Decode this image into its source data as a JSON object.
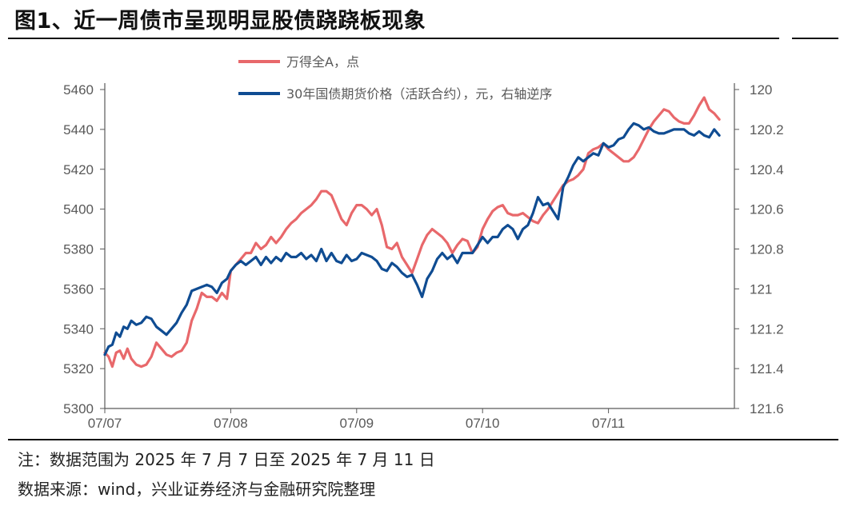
{
  "figure": {
    "title": "图1、近一周债市呈现明显股债跷跷板现象",
    "note": "注：数据范围为 2025 年 7 月 7 日至 2025 年 7 月 11 日",
    "source": "数据来源：wind，兴业证券经济与金融研究院整理"
  },
  "chart_data": {
    "type": "line",
    "title": "",
    "x_tick_labels": [
      "07/07",
      "07/08",
      "07/09",
      "07/10",
      "07/11"
    ],
    "x_unit": "trading day (fractional position within day)",
    "ylim_left": [
      5300,
      5460
    ],
    "yticks_left": [
      5300,
      5320,
      5340,
      5360,
      5380,
      5400,
      5420,
      5440,
      5460
    ],
    "ylim_right": [
      121.6,
      120.0
    ],
    "yticks_right": [
      "121.6",
      "121.4",
      "121.2",
      "121",
      "120.8",
      "120.6",
      "120.4",
      "120.2",
      "120"
    ],
    "right_axis_inverted": true,
    "legend_position": "top-center",
    "colors": {
      "wind_a": "#e8686b",
      "bond_futures": "#0f4c92",
      "axis": "#595959"
    },
    "series": [
      {
        "name": "万得全A，点",
        "axis": "left",
        "x": [
          0,
          0.03,
          0.06,
          0.09,
          0.12,
          0.15,
          0.18,
          0.21,
          0.25,
          0.29,
          0.33,
          0.37,
          0.41,
          0.45,
          0.49,
          0.53,
          0.57,
          0.61,
          0.65,
          0.69,
          0.73,
          0.77,
          0.81,
          0.85,
          0.89,
          0.93,
          0.97,
          1.0,
          1.04,
          1.08,
          1.12,
          1.16,
          1.2,
          1.24,
          1.28,
          1.32,
          1.36,
          1.4,
          1.44,
          1.48,
          1.52,
          1.56,
          1.6,
          1.64,
          1.68,
          1.72,
          1.76,
          1.8,
          1.84,
          1.88,
          1.92,
          1.96,
          2.0,
          2.04,
          2.08,
          2.12,
          2.16,
          2.2,
          2.24,
          2.28,
          2.32,
          2.36,
          2.4,
          2.44,
          2.48,
          2.52,
          2.56,
          2.6,
          2.64,
          2.68,
          2.72,
          2.76,
          2.8,
          2.84,
          2.88,
          2.92,
          2.96,
          3.0,
          3.04,
          3.08,
          3.12,
          3.16,
          3.2,
          3.24,
          3.28,
          3.32,
          3.36,
          3.4,
          3.44,
          3.48,
          3.52,
          3.56,
          3.6,
          3.64,
          3.68,
          3.72,
          3.76,
          3.8,
          3.84,
          3.88,
          3.92,
          3.96,
          4.0,
          4.04,
          4.08,
          4.12,
          4.16,
          4.2,
          4.24,
          4.28,
          4.32,
          4.36,
          4.4,
          4.44,
          4.48,
          4.52,
          4.56,
          4.6,
          4.64,
          4.68,
          4.72,
          4.76,
          4.8,
          4.84,
          4.88
        ],
        "values": [
          5328,
          5326,
          5321,
          5328,
          5329,
          5325,
          5330,
          5325,
          5322,
          5321,
          5322,
          5326,
          5333,
          5330,
          5327,
          5326,
          5328,
          5329,
          5333,
          5344,
          5350,
          5358,
          5356,
          5356,
          5354,
          5358,
          5355,
          5369,
          5372,
          5375,
          5378,
          5378,
          5383,
          5380,
          5382,
          5386,
          5383,
          5386,
          5390,
          5393,
          5395,
          5398,
          5400,
          5402,
          5405,
          5409,
          5409,
          5407,
          5401,
          5395,
          5392,
          5398,
          5402,
          5402,
          5400,
          5397,
          5400,
          5392,
          5381,
          5380,
          5383,
          5376,
          5372,
          5368,
          5375,
          5382,
          5387,
          5390,
          5388,
          5386,
          5383,
          5378,
          5382,
          5385,
          5384,
          5378,
          5381,
          5390,
          5395,
          5399,
          5401,
          5402,
          5398,
          5397,
          5397,
          5398,
          5396,
          5394,
          5393,
          5397,
          5400,
          5404,
          5408,
          5412,
          5414,
          5415,
          5417,
          5420,
          5428,
          5430,
          5431,
          5433,
          5430,
          5428,
          5426,
          5424,
          5424,
          5426,
          5430,
          5435,
          5440,
          5444,
          5447,
          5450,
          5449,
          5446,
          5444,
          5443,
          5443,
          5447,
          5452,
          5456,
          5450,
          5448,
          5445
        ],
        "description_note": ""
      },
      {
        "name": "30年国债期货价格（活跃合约），元，右轴逆序",
        "axis": "right",
        "x": [
          0,
          0.03,
          0.06,
          0.09,
          0.12,
          0.15,
          0.18,
          0.21,
          0.25,
          0.29,
          0.33,
          0.37,
          0.41,
          0.45,
          0.49,
          0.53,
          0.57,
          0.61,
          0.65,
          0.69,
          0.73,
          0.77,
          0.81,
          0.85,
          0.89,
          0.93,
          0.97,
          1.0,
          1.04,
          1.08,
          1.12,
          1.16,
          1.2,
          1.24,
          1.28,
          1.32,
          1.36,
          1.4,
          1.44,
          1.48,
          1.52,
          1.56,
          1.6,
          1.64,
          1.68,
          1.72,
          1.76,
          1.8,
          1.84,
          1.88,
          1.92,
          1.96,
          2.0,
          2.04,
          2.08,
          2.12,
          2.16,
          2.2,
          2.24,
          2.28,
          2.32,
          2.36,
          2.4,
          2.44,
          2.48,
          2.52,
          2.56,
          2.6,
          2.64,
          2.68,
          2.72,
          2.76,
          2.8,
          2.84,
          2.88,
          2.92,
          2.96,
          3.0,
          3.04,
          3.08,
          3.12,
          3.16,
          3.2,
          3.24,
          3.28,
          3.32,
          3.36,
          3.4,
          3.44,
          3.48,
          3.52,
          3.56,
          3.6,
          3.64,
          3.68,
          3.72,
          3.76,
          3.8,
          3.84,
          3.88,
          3.92,
          3.96,
          4.0,
          4.04,
          4.08,
          4.12,
          4.16,
          4.2,
          4.24,
          4.28,
          4.32,
          4.36,
          4.4,
          4.44,
          4.48,
          4.52,
          4.56,
          4.6,
          4.64,
          4.68,
          4.72,
          4.76,
          4.8,
          4.84,
          4.88
        ],
        "values": [
          121.33,
          121.29,
          121.28,
          121.22,
          121.24,
          121.19,
          121.2,
          121.16,
          121.18,
          121.17,
          121.14,
          121.15,
          121.19,
          121.21,
          121.23,
          121.2,
          121.17,
          121.12,
          121.08,
          121.01,
          121.0,
          120.99,
          120.98,
          120.99,
          121.02,
          120.97,
          120.95,
          120.91,
          120.88,
          120.86,
          120.88,
          120.86,
          120.84,
          120.88,
          120.84,
          120.87,
          120.84,
          120.86,
          120.82,
          120.84,
          120.84,
          120.82,
          120.85,
          120.83,
          120.86,
          120.8,
          120.86,
          120.82,
          120.86,
          120.87,
          120.83,
          120.86,
          120.85,
          120.82,
          120.83,
          120.84,
          120.86,
          120.9,
          120.91,
          120.87,
          120.89,
          120.92,
          120.94,
          120.93,
          120.98,
          121.04,
          120.95,
          120.91,
          120.85,
          120.82,
          120.85,
          120.83,
          120.87,
          120.82,
          120.82,
          120.82,
          120.78,
          120.74,
          120.77,
          120.74,
          120.74,
          120.7,
          120.68,
          120.7,
          120.75,
          120.7,
          120.68,
          120.62,
          120.54,
          120.58,
          120.57,
          120.61,
          120.65,
          120.49,
          120.44,
          120.38,
          120.34,
          120.36,
          120.34,
          120.32,
          120.33,
          120.27,
          120.29,
          120.28,
          120.25,
          120.24,
          120.2,
          120.17,
          120.18,
          120.2,
          120.19,
          120.21,
          120.22,
          120.22,
          120.21,
          120.2,
          120.2,
          120.2,
          120.22,
          120.23,
          120.21,
          120.23,
          120.24,
          120.2,
          120.23
        ]
      }
    ]
  }
}
